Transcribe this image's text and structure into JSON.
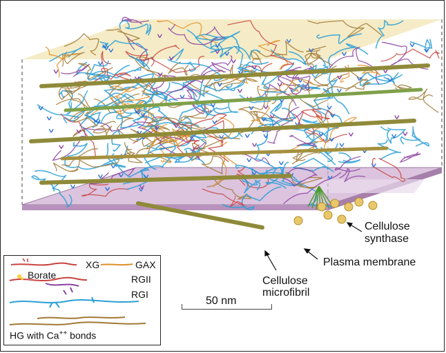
{
  "labels": {
    "cellulose_synthase_line1": "Cellulose",
    "cellulose_synthase_line2": "synthase",
    "plasma_membrane": "Plasma membrane",
    "cellulose_microfibril_line1": "Cellulose",
    "cellulose_microfibril_line2": "microfibril",
    "scale_bar": "50 nm"
  },
  "legend": {
    "xg": "XG",
    "gax": "GAX",
    "borate": "Borate",
    "rgii": "RGII",
    "rgi": "RGI",
    "hg_prefix": "HG with Ca",
    "hg_superscript": "++",
    "hg_suffix": " bonds"
  },
  "colors": {
    "xg": "#c8433f",
    "gax": "#e0902a",
    "rgii": "#8a3fa0",
    "rgi": "#2a9fd6",
    "hg": "#a07834",
    "microfibril": "#8f8a3a",
    "membrane": "#c9a9cc",
    "synthase": "#e8c86a"
  }
}
